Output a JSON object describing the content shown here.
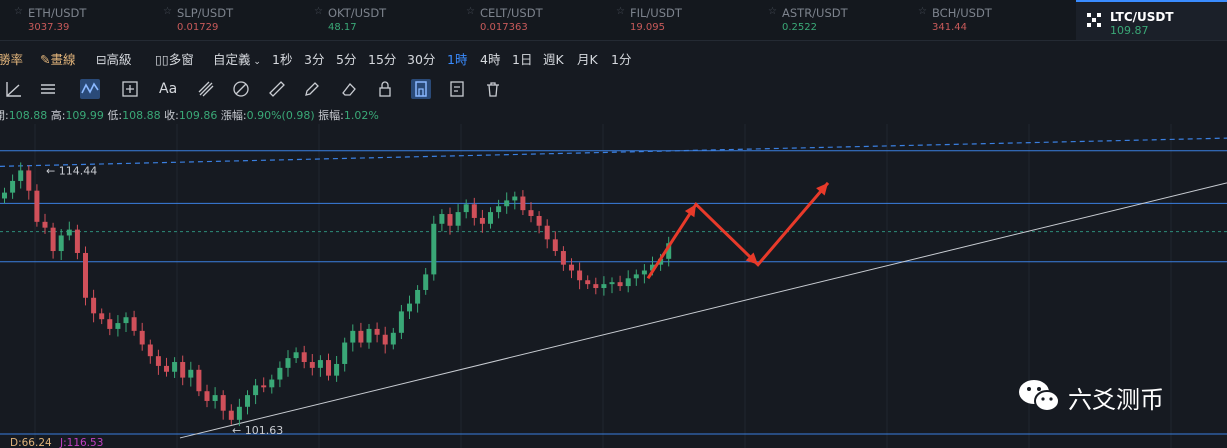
{
  "tickers": [
    {
      "symbol": "ETH/USDT",
      "price": "3037.39",
      "color": "#c85a5a"
    },
    {
      "symbol": "SLP/USDT",
      "price": "0.01729",
      "color": "#c85a5a"
    },
    {
      "symbol": "OKT/USDT",
      "price": "48.17",
      "color": "#3aa877"
    },
    {
      "symbol": "CELT/USDT",
      "price": "0.017363",
      "color": "#c85a5a"
    },
    {
      "symbol": "FIL/USDT",
      "price": "19.095",
      "color": "#c85a5a"
    },
    {
      "symbol": "ASTR/USDT",
      "price": "0.2522",
      "color": "#3aa877"
    },
    {
      "symbol": "BCH/USDT",
      "price": "341.44",
      "color": "#c85a5a"
    },
    {
      "symbol": "LTC/USDT",
      "price": "109.87",
      "color": "#3aa877",
      "active": true
    }
  ],
  "toolbar": {
    "fee_rate": "勝率",
    "draw": "畫線",
    "advanced": "高級",
    "multi_window": "多窗",
    "custom": "自定義",
    "intervals": [
      "1秒",
      "3分",
      "5分",
      "15分",
      "30分",
      "1時",
      "4時",
      "1日",
      "週K",
      "月K",
      "1分"
    ],
    "selected_interval": "1時"
  },
  "draw_tools": [
    "trendline-icon",
    "parallel-lines-icon",
    "wave-icon",
    "crosshair-box-icon",
    "text-icon",
    "brush-icon",
    "measure-icon",
    "ruler-icon",
    "pencil-icon",
    "lock-icon",
    "magnet-icon",
    "note-icon",
    "trash-icon"
  ],
  "ohlc": {
    "open_label": "開:",
    "open": "108.88",
    "high_label": "高:",
    "high": "109.99",
    "low_label": "低:",
    "low": "108.88",
    "close_label": "收:",
    "close": "109.86",
    "change_label": "漲幅:",
    "change": "0.90%(0.98)",
    "amplitude_label": "振幅:",
    "amplitude": "1.02%"
  },
  "chart_data": {
    "type": "candlestick",
    "symbol": "LTC/USDT",
    "interval": "1時",
    "ylim": [
      100.8,
      115.9
    ],
    "annotations": {
      "high_marker": "114.44",
      "low_marker": "101.63"
    },
    "horizontal_levels": [
      115.45,
      112.75,
      111.3,
      109.75,
      100.9
    ],
    "dashed_level": 111.3,
    "trendline_upper_dashed": {
      "from_y": 114.65,
      "to_y": 116.1
    },
    "trendline_support": {
      "from_y": 100.7,
      "to_y": 113.8
    },
    "projection_arrows": "up → down → up",
    "closes": [
      113.3,
      113.9,
      114.44,
      113.4,
      111.8,
      111.5,
      110.3,
      111.1,
      111.4,
      110.2,
      107.9,
      107.1,
      106.8,
      106.3,
      106.6,
      106.9,
      106.2,
      105.5,
      104.9,
      104.4,
      104.1,
      104.6,
      103.8,
      104.2,
      103.1,
      102.6,
      102.9,
      102.1,
      101.63,
      102.3,
      102.9,
      103.4,
      103.3,
      103.7,
      104.3,
      104.8,
      105.1,
      104.6,
      104.3,
      104.7,
      103.9,
      104.5,
      105.6,
      106.2,
      105.6,
      106.3,
      106.0,
      105.5,
      106.1,
      107.2,
      107.6,
      108.3,
      109.1,
      111.7,
      112.2,
      111.6,
      112.3,
      112.7,
      112.0,
      111.7,
      112.3,
      112.6,
      112.9,
      113.1,
      112.4,
      112.1,
      111.6,
      110.9,
      110.3,
      109.6,
      109.3,
      108.8,
      108.6,
      108.4,
      108.6,
      108.7,
      108.5,
      108.9,
      109.1,
      109.3,
      109.6,
      109.9,
      110.7
    ]
  },
  "bottom_indicators": {
    "d_label": "D:",
    "d_value": "66.24",
    "j_label": "J:",
    "j_value": "116.53"
  },
  "watermark": {
    "text": "六爻测币"
  }
}
